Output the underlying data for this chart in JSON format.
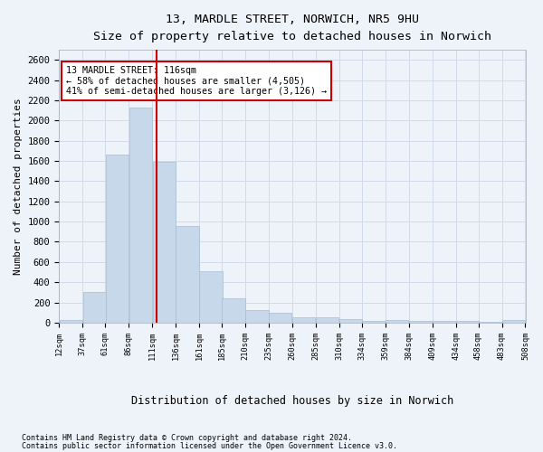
{
  "title_line1": "13, MARDLE STREET, NORWICH, NR5 9HU",
  "title_line2": "Size of property relative to detached houses in Norwich",
  "xlabel": "Distribution of detached houses by size in Norwich",
  "ylabel": "Number of detached properties",
  "bar_color": "#c8d8eb",
  "bar_edgecolor": "#a8bcd0",
  "bar_left_edges": [
    12,
    37,
    61,
    86,
    111,
    136,
    161,
    185,
    210,
    235,
    260,
    285,
    310,
    334,
    359,
    384,
    409,
    434,
    458,
    483
  ],
  "bar_heights": [
    25,
    300,
    1660,
    2130,
    1590,
    955,
    505,
    245,
    120,
    100,
    55,
    50,
    35,
    20,
    25,
    20,
    20,
    15,
    5,
    25
  ],
  "bin_width": 25,
  "property_size": 116,
  "annotation_title": "13 MARDLE STREET: 116sqm",
  "annotation_line2": "← 58% of detached houses are smaller (4,505)",
  "annotation_line3": "41% of semi-detached houses are larger (3,126) →",
  "vline_color": "#cc0000",
  "annotation_box_edgecolor": "#cc0000",
  "annotation_box_facecolor": "#ffffff",
  "ylim": [
    0,
    2700
  ],
  "xlim": [
    12,
    508
  ],
  "tick_labels": [
    "12sqm",
    "37sqm",
    "61sqm",
    "86sqm",
    "111sqm",
    "136sqm",
    "161sqm",
    "185sqm",
    "210sqm",
    "235sqm",
    "260sqm",
    "285sqm",
    "310sqm",
    "334sqm",
    "359sqm",
    "384sqm",
    "409sqm",
    "434sqm",
    "458sqm",
    "483sqm",
    "508sqm"
  ],
  "tick_positions": [
    12,
    37,
    61,
    86,
    111,
    136,
    161,
    185,
    210,
    235,
    260,
    285,
    310,
    334,
    359,
    384,
    409,
    434,
    458,
    483,
    508
  ],
  "yticks": [
    0,
    200,
    400,
    600,
    800,
    1000,
    1200,
    1400,
    1600,
    1800,
    2000,
    2200,
    2400,
    2600
  ],
  "footnote1": "Contains HM Land Registry data © Crown copyright and database right 2024.",
  "footnote2": "Contains public sector information licensed under the Open Government Licence v3.0.",
  "grid_color": "#d0daea",
  "background_color": "#eef2f9",
  "axes_background": "#eef2f9"
}
